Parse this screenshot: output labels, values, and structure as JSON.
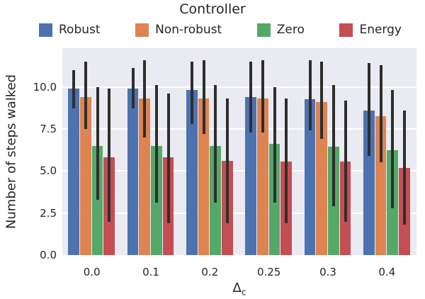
{
  "title": "Controller",
  "xlabel_delta": "Δ",
  "xlabel_subscript": "c",
  "colors": {
    "plot_background": "#EAEAF2",
    "gridline": "#ffffff",
    "error_bar": "#2e2e2e",
    "text": "#262626"
  },
  "legend": [
    {
      "label": "Robust",
      "color": "#4C72B0"
    },
    {
      "label": "Non-robust",
      "color": "#DD8452"
    },
    {
      "label": "Zero",
      "color": "#55A868"
    },
    {
      "label": "Energy",
      "color": "#C44E52"
    }
  ],
  "chart_data": {
    "type": "bar",
    "title": "Controller",
    "xlabel": "Δ_c",
    "ylabel": "Number of steps walked",
    "categories": [
      "0.0",
      "0.1",
      "0.2",
      "0.25",
      "0.3",
      "0.4"
    ],
    "yticks": [
      0.0,
      2.5,
      5.0,
      7.5,
      10.0
    ],
    "ylim": [
      0,
      12.3
    ],
    "grid": true,
    "legend_position": "top",
    "error_bars": true,
    "series": [
      {
        "name": "Robust",
        "color": "#4C72B0",
        "values": [
          9.9,
          9.9,
          9.8,
          9.4,
          9.25,
          8.6
        ],
        "error_low": [
          8.7,
          8.7,
          7.8,
          7.3,
          7.4,
          5.9
        ],
        "error_high": [
          11.0,
          11.1,
          11.5,
          11.5,
          11.6,
          11.4
        ]
      },
      {
        "name": "Non-robust",
        "color": "#DD8452",
        "values": [
          9.4,
          9.3,
          9.3,
          9.3,
          9.1,
          8.25
        ],
        "error_low": [
          7.5,
          7.0,
          7.2,
          7.3,
          6.9,
          5.5
        ],
        "error_high": [
          11.5,
          11.6,
          11.6,
          11.6,
          11.5,
          11.3
        ]
      },
      {
        "name": "Zero",
        "color": "#55A868",
        "values": [
          6.5,
          6.5,
          6.5,
          6.6,
          6.45,
          6.25
        ],
        "error_low": [
          3.3,
          3.1,
          3.1,
          3.1,
          2.9,
          2.8
        ],
        "error_high": [
          10.0,
          10.1,
          10.1,
          10.0,
          10.1,
          9.8
        ]
      },
      {
        "name": "Energy",
        "color": "#C44E52",
        "values": [
          5.8,
          5.8,
          5.6,
          5.55,
          5.55,
          5.2
        ],
        "error_low": [
          2.0,
          1.9,
          1.9,
          1.9,
          2.0,
          1.8
        ],
        "error_high": [
          9.9,
          9.6,
          9.3,
          9.3,
          9.2,
          8.6
        ]
      }
    ]
  }
}
